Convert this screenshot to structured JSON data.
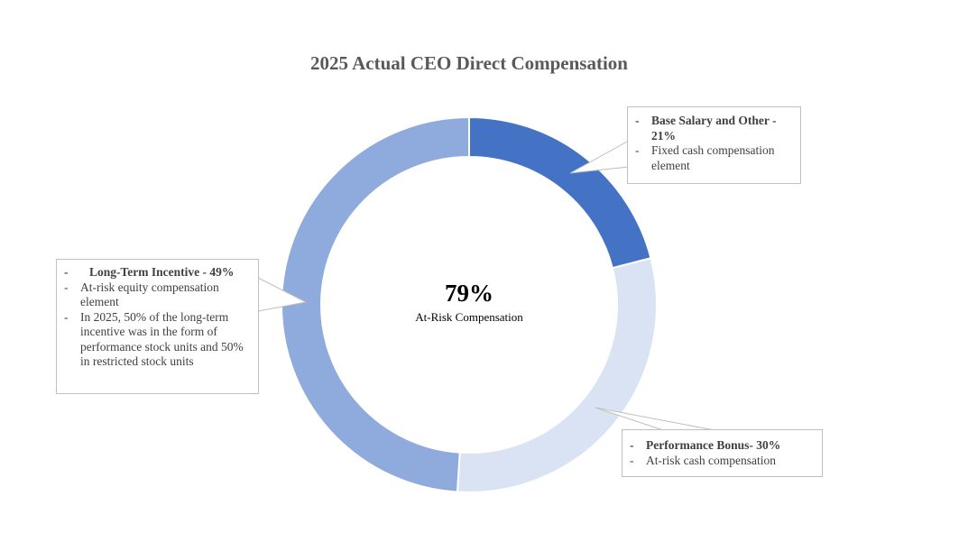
{
  "chart_data": {
    "type": "pie",
    "title": "2025 Actual CEO Direct Compensation",
    "center": {
      "value": "79%",
      "label": "At-Risk Compensation"
    },
    "slices": [
      {
        "key": "base",
        "value": 21,
        "color": "#4472C4"
      },
      {
        "key": "bonus",
        "value": 30,
        "color": "#DAE3F3"
      },
      {
        "key": "ltip",
        "value": 49,
        "color": "#8FAADC"
      }
    ],
    "callouts": {
      "base": {
        "heading": "Base Salary and Other - 21%",
        "lines": [
          "Fixed cash compensation element"
        ]
      },
      "bonus": {
        "heading": "Performance Bonus- 30%",
        "lines": [
          "At-risk cash compensation"
        ]
      },
      "ltip": {
        "heading": "Long-Term Incentive - 49%",
        "lines": [
          "At-risk equity compensation element",
          "In 2025, 50% of the long-term incentive was in the form of performance stock units and 50% in restricted stock units"
        ]
      }
    }
  }
}
